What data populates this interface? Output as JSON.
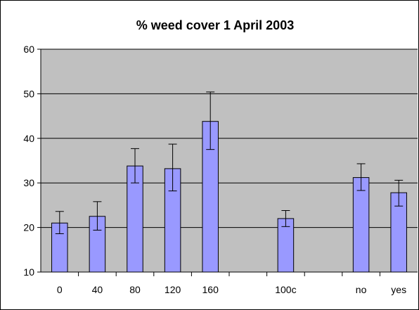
{
  "chart_data": {
    "type": "bar",
    "title": "% weed cover 1 April 2003",
    "xlabel": "",
    "ylabel": "",
    "ylim": [
      10,
      60
    ],
    "yticks": [
      10,
      20,
      30,
      40,
      50,
      60
    ],
    "grid": true,
    "legend": "none",
    "categories": [
      "0",
      "40",
      "80",
      "120",
      "160",
      "",
      "100c",
      "",
      "no",
      "yes"
    ],
    "values": [
      21,
      22.5,
      33.8,
      33.2,
      43.8,
      null,
      22,
      null,
      31.2,
      27.8
    ],
    "error_low": [
      18.6,
      19.4,
      30,
      28.2,
      37.5,
      null,
      20.2,
      null,
      28.3,
      24.8
    ],
    "error_high": [
      23.6,
      25.8,
      37.7,
      38.7,
      50.4,
      null,
      23.8,
      null,
      34.3,
      30.6
    ],
    "colors": {
      "bar_fill": "#9999ff",
      "plot_background": "#c0c0c0",
      "gridline": "#000000"
    }
  }
}
